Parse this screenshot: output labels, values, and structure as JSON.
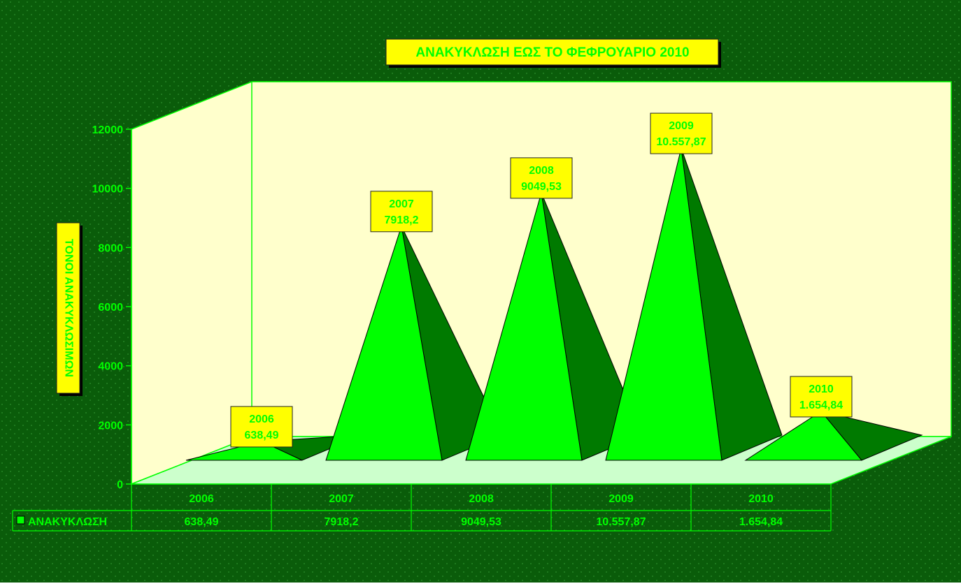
{
  "colors": {
    "background": "#0a5c0a",
    "background_dots": "#2e8f2e",
    "plot_wall": "#ffffcc",
    "floor": "#ccffcc",
    "axis_line": "#00ff00",
    "pyramid_front": "#00ff00",
    "pyramid_side": "#007a00",
    "label_box": "#ffff00",
    "text_green": "#00ff00"
  },
  "chart_data": {
    "type": "bar",
    "shape": "3d-pyramid",
    "title": "ΑΝΑΚΥΚΛΩΣΗ ΕΩΣ ΤΟ ΦΕΦΡΟΥΑΡΙΟ 2010",
    "xlabel": "",
    "ylabel": "ΤΟΝΟΙ ΑΝΑΚΥΚΛΩΣΙΜΩΝ",
    "categories": [
      "2006",
      "2007",
      "2008",
      "2009",
      "2010"
    ],
    "series": [
      {
        "name": "ΑΝΑΚΥΚΛΩΣΗ",
        "values": [
          638.49,
          7918.2,
          9049.53,
          10557.87,
          1654.84
        ],
        "value_labels": [
          "638,49",
          "7918,2",
          "9049,53",
          "10.557,87",
          "1.654,84"
        ]
      }
    ],
    "ylim": [
      0,
      12000
    ],
    "yticks": [
      "0",
      "2000",
      "4000",
      "6000",
      "8000",
      "10000",
      "12000"
    ],
    "grid": false,
    "legend": "data-table",
    "data_table": true
  }
}
